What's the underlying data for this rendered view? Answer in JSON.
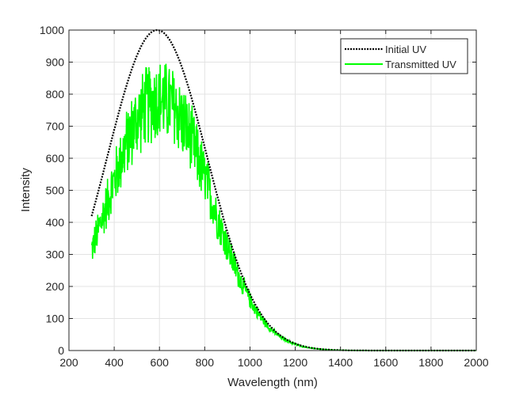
{
  "chart_data": {
    "type": "line",
    "title": "",
    "xlabel": "Wavelength (nm)",
    "ylabel": "Intensity",
    "xlim": [
      200,
      2000
    ],
    "ylim": [
      0,
      1000
    ],
    "xticks": [
      200,
      400,
      600,
      800,
      1000,
      1200,
      1400,
      1600,
      1800,
      2000
    ],
    "yticks": [
      0,
      100,
      200,
      300,
      400,
      500,
      600,
      700,
      800,
      900,
      1000
    ],
    "grid": true,
    "legend_position": "top-right",
    "series": [
      {
        "name": "Initial UV",
        "style": "dotted",
        "color": "#000000",
        "model": {
          "kind": "gaussian",
          "amplitude": 1000,
          "center": 590,
          "sigma": 220,
          "x_range": [
            300,
            2000
          ]
        },
        "x": [
          300,
          400,
          500,
          590,
          700,
          800,
          900,
          1000,
          1100,
          1200,
          1300,
          1400,
          1500,
          2000
        ],
        "values": [
          420,
          689,
          920,
          1000,
          882,
          634,
          371,
          176,
          68,
          21,
          5,
          1,
          0,
          0
        ]
      },
      {
        "name": "Transmitted UV",
        "style": "solid",
        "color": "#00ff00",
        "transmission_ratio": {
          "x": [
            300,
            450,
            600,
            800,
            1000,
            1200,
            2000
          ],
          "values": [
            0.75,
            0.78,
            0.78,
            0.85,
            0.9,
            0.93,
            0.95
          ]
        },
        "noise_fraction": 0.13,
        "x": [
          300,
          400,
          500,
          600,
          700,
          800,
          900,
          1000,
          1100,
          1200,
          1300,
          1400,
          2000
        ],
        "values": [
          310,
          530,
          700,
          780,
          700,
          540,
          320,
          160,
          62,
          20,
          5,
          1,
          0
        ]
      }
    ]
  }
}
